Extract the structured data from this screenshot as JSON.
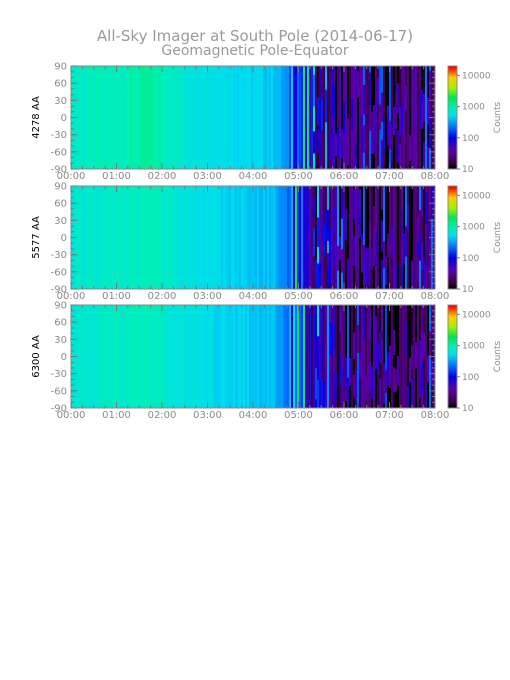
{
  "title_line1": "All-Sky Imager at South Pole (2014-06-17)",
  "title_line2": "Geomagnetic Pole-Equator",
  "chart_data": [
    {
      "type": "heatmap",
      "ylabel": "4278 AA",
      "x_ticks": [
        "00:00",
        "01:00",
        "02:00",
        "03:00",
        "04:00",
        "05:00",
        "06:00",
        "07:00",
        "08:00"
      ],
      "y_ticks": [
        90,
        60,
        30,
        0,
        -30,
        -60,
        -90
      ],
      "ylim": [
        -90,
        90
      ],
      "xlim": [
        "00:00",
        "08:00"
      ],
      "colorbar": {
        "label": "Counts",
        "scale": "log",
        "ticks": [
          10,
          100,
          1000,
          10000
        ],
        "range": [
          10,
          20000
        ]
      },
      "time_profile_log_counts": {
        "hours": [
          0,
          1,
          1.7,
          2.5,
          3.5,
          4.5,
          4.9,
          5.2,
          5.5,
          6,
          7,
          8
        ],
        "log10_counts": [
          2.9,
          2.95,
          3.05,
          2.85,
          2.75,
          2.65,
          2.3,
          1.8,
          1.4,
          1.1,
          1.05,
          1.1
        ]
      }
    },
    {
      "type": "heatmap",
      "ylabel": "5577 AA",
      "x_ticks": [
        "00:00",
        "01:00",
        "02:00",
        "03:00",
        "04:00",
        "05:00",
        "06:00",
        "07:00",
        "08:00"
      ],
      "y_ticks": [
        90,
        60,
        30,
        0,
        -30,
        -60,
        -90
      ],
      "ylim": [
        -90,
        90
      ],
      "xlim": [
        "00:00",
        "08:00"
      ],
      "colorbar": {
        "label": "Counts",
        "scale": "log",
        "ticks": [
          10,
          100,
          1000,
          10000
        ],
        "range": [
          10,
          20000
        ]
      },
      "time_profile_log_counts": {
        "hours": [
          0,
          1,
          1.7,
          2.5,
          3.5,
          4.5,
          4.9,
          5.2,
          5.5,
          6,
          7,
          8
        ],
        "log10_counts": [
          2.85,
          2.9,
          2.95,
          2.8,
          2.7,
          2.6,
          2.2,
          1.7,
          1.35,
          1.1,
          1.05,
          1.1
        ]
      }
    },
    {
      "type": "heatmap",
      "ylabel": "6300 AA",
      "x_ticks": [
        "00:00",
        "01:00",
        "02:00",
        "03:00",
        "04:00",
        "05:00",
        "06:00",
        "07:00",
        "08:00"
      ],
      "y_ticks": [
        90,
        60,
        30,
        0,
        -30,
        -60,
        -90
      ],
      "ylim": [
        -90,
        90
      ],
      "xlim": [
        "00:00",
        "08:00"
      ],
      "colorbar": {
        "label": "Counts",
        "scale": "log",
        "ticks": [
          10,
          100,
          1000,
          10000
        ],
        "range": [
          10,
          20000
        ]
      },
      "time_profile_log_counts": {
        "hours": [
          0,
          1,
          1.7,
          2.5,
          3.5,
          4.5,
          4.9,
          5.2,
          5.5,
          6,
          7,
          8
        ],
        "log10_counts": [
          2.85,
          2.9,
          2.95,
          2.8,
          2.7,
          2.6,
          2.2,
          1.7,
          1.35,
          1.1,
          1.05,
          1.1
        ]
      }
    }
  ]
}
